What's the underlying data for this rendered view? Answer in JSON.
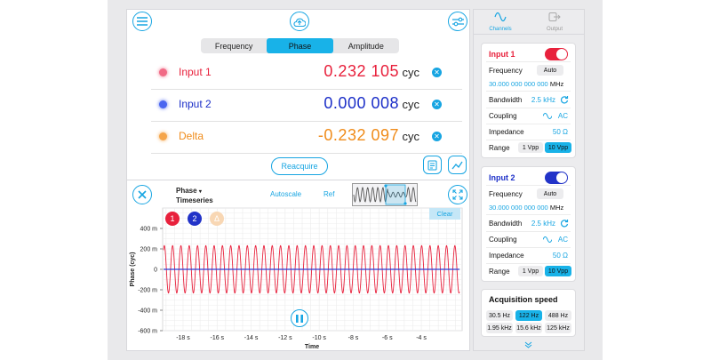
{
  "top_tabs": [
    "Frequency",
    "Phase",
    "Amplitude"
  ],
  "active_top_tab": "Phase",
  "inputs": [
    {
      "name": "Input 1",
      "value": "0.232 105",
      "unit": "cyc",
      "color": "#e8213c",
      "dot": "#f16a85"
    },
    {
      "name": "Input 2",
      "value": "0.000 008",
      "unit": "cyc",
      "color": "#1c2fc8",
      "dot": "#4a66f0"
    },
    {
      "name": "Delta",
      "value": "-0.232 097",
      "unit": "cyc",
      "color": "#f08c1b",
      "dot": "#f5a54a"
    }
  ],
  "reacquire_label": "Reacquire",
  "plot": {
    "mode_line1": "Phase",
    "mode_line2": "Timeseries",
    "autoscale_label": "Autoscale",
    "ref_label": "Ref",
    "clear_label": "Clear",
    "channel_markers": [
      "1",
      "2",
      "Δ"
    ],
    "ylabel": "Phase (cyc)",
    "xlabel": "Time"
  },
  "chart_data": {
    "type": "line",
    "xlabel": "Time",
    "ylabel": "Phase (cyc)",
    "xlim": [
      -19.2,
      -1.6
    ],
    "ylim": [
      -600,
      600
    ],
    "y_unit": "m (milli-cycles)",
    "x_ticks": [
      "-18 s",
      "-16 s",
      "-14 s",
      "-12 s",
      "-10 s",
      "-8 s",
      "-6 s",
      "-4 s"
    ],
    "x_tick_values": [
      -18,
      -16,
      -14,
      -12,
      -10,
      -8,
      -6,
      -4
    ],
    "y_ticks": [
      "400 m",
      "200 m",
      "0",
      "-200 m",
      "-400 m",
      "-600 m"
    ],
    "y_tick_values": [
      400,
      200,
      0,
      -200,
      -400,
      -600
    ],
    "series": [
      {
        "name": "1",
        "color": "#e8213c",
        "kind": "sine",
        "amplitude": 232,
        "offset": 0,
        "cycles_per_s": 2.05
      },
      {
        "name": "2",
        "color": "#2a3fd8",
        "kind": "flat",
        "value": 0
      }
    ],
    "grid": true
  },
  "sidebar": {
    "tabs": [
      {
        "label": "Channels",
        "active": true
      },
      {
        "label": "Output",
        "active": false
      }
    ],
    "channels": [
      {
        "title": "Input 1",
        "title_color": "#e8213c",
        "toggle_color": "#e8213c",
        "frequency_label": "Frequency",
        "frequency_mode": "Auto",
        "frequency_value": "30.000 000 000 000",
        "frequency_unit": "MHz",
        "bandwidth_label": "Bandwidth",
        "bandwidth_value": "2.5 kHz",
        "coupling_label": "Coupling",
        "coupling_value": "AC",
        "impedance_label": "Impedance",
        "impedance_value": "50 Ω",
        "range_label": "Range",
        "range_options": [
          "1 Vpp",
          "10 Vpp"
        ],
        "range_selected": "10 Vpp"
      },
      {
        "title": "Input 2",
        "title_color": "#1c2fc8",
        "toggle_color": "#2233c8",
        "frequency_label": "Frequency",
        "frequency_mode": "Auto",
        "frequency_value": "30.000 000 000 000",
        "frequency_unit": "MHz",
        "bandwidth_label": "Bandwidth",
        "bandwidth_value": "2.5 kHz",
        "coupling_label": "Coupling",
        "coupling_value": "AC",
        "impedance_label": "Impedance",
        "impedance_value": "50 Ω",
        "range_label": "Range",
        "range_options": [
          "1 Vpp",
          "10 Vpp"
        ],
        "range_selected": "10 Vpp"
      }
    ],
    "acquisition": {
      "title": "Acquisition speed",
      "options": [
        "30.5 Hz",
        "122 Hz",
        "488 Hz",
        "1.95 kHz",
        "15.6 kHz",
        "125 kHz"
      ],
      "selected": "122 Hz"
    }
  },
  "colors": {
    "accent": "#17a5e2"
  }
}
